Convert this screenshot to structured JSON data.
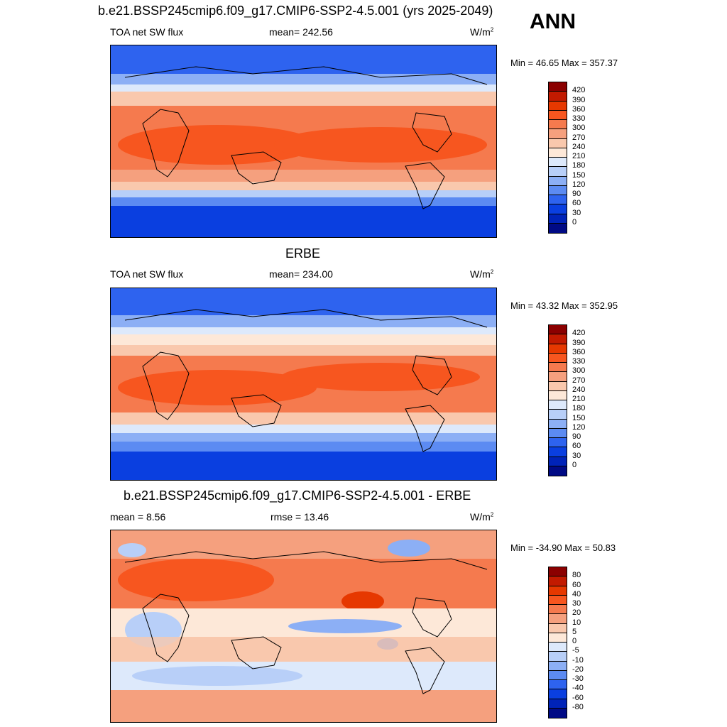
{
  "header": {
    "case_title": "b.e21.BSSP245cmip6.f09_g17.CMIP6-SSP2-4.5.001 (yrs 2025-2049)",
    "season": "ANN"
  },
  "panels": [
    {
      "title": "",
      "left_label": "TOA net SW flux",
      "center_label": "mean= 242.56",
      "units": "W/m",
      "units_sup": "2",
      "minmax": "Min =  46.65 Max = 357.37",
      "legend_ticks": [
        "420",
        "390",
        "360",
        "330",
        "300",
        "270",
        "240",
        "210",
        "180",
        "150",
        "120",
        "90",
        "60",
        "30",
        "0"
      ]
    },
    {
      "title": "ERBE",
      "left_label": "TOA net SW flux",
      "center_label": "mean= 234.00",
      "units": "W/m",
      "units_sup": "2",
      "minmax": "Min =  43.32 Max = 352.95",
      "legend_ticks": [
        "420",
        "390",
        "360",
        "330",
        "300",
        "270",
        "240",
        "210",
        "180",
        "150",
        "120",
        "90",
        "60",
        "30",
        "0"
      ]
    },
    {
      "title": "b.e21.BSSP245cmip6.f09_g17.CMIP6-SSP2-4.5.001 - ERBE",
      "left_label": "mean =   8.56",
      "center_label": "rmse =  13.46",
      "units": "W/m",
      "units_sup": "2",
      "minmax": "Min = -34.90 Max =  50.83",
      "legend_ticks": [
        "80",
        "60",
        "40",
        "30",
        "20",
        "10",
        "5",
        "0",
        "-5",
        "-10",
        "-20",
        "-30",
        "-40",
        "-60",
        "-80"
      ]
    }
  ],
  "colors": {
    "scale": [
      "#8b0000",
      "#c21a00",
      "#e63800",
      "#f7561f",
      "#f57a4e",
      "#f5a07e",
      "#f9c8ad",
      "#fde8d8",
      "#dde9fb",
      "#b8cff8",
      "#8caff5",
      "#5c8bf2",
      "#2e63ef",
      "#0a3fe0",
      "#0023b8",
      "#000a85"
    ]
  }
}
